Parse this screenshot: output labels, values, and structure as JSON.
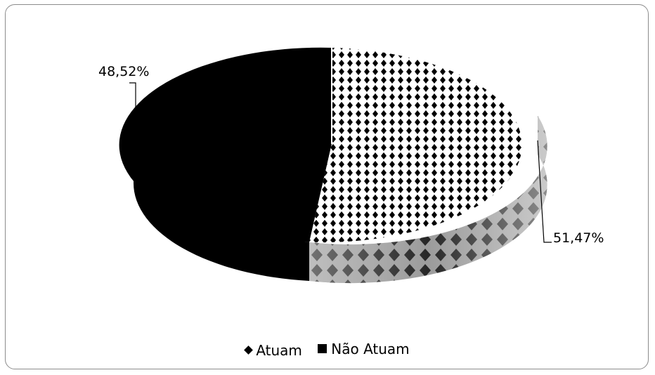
{
  "chart_data": {
    "type": "pie",
    "style": "3d",
    "series": [
      {
        "name": "Atuam",
        "value": 51.47,
        "label": "51,47%",
        "fill": "pattern-diamond-checker"
      },
      {
        "name": "Não Atuam",
        "value": 48.52,
        "label": "48,52%",
        "fill": "#000000"
      }
    ],
    "legend_position": "bottom"
  }
}
